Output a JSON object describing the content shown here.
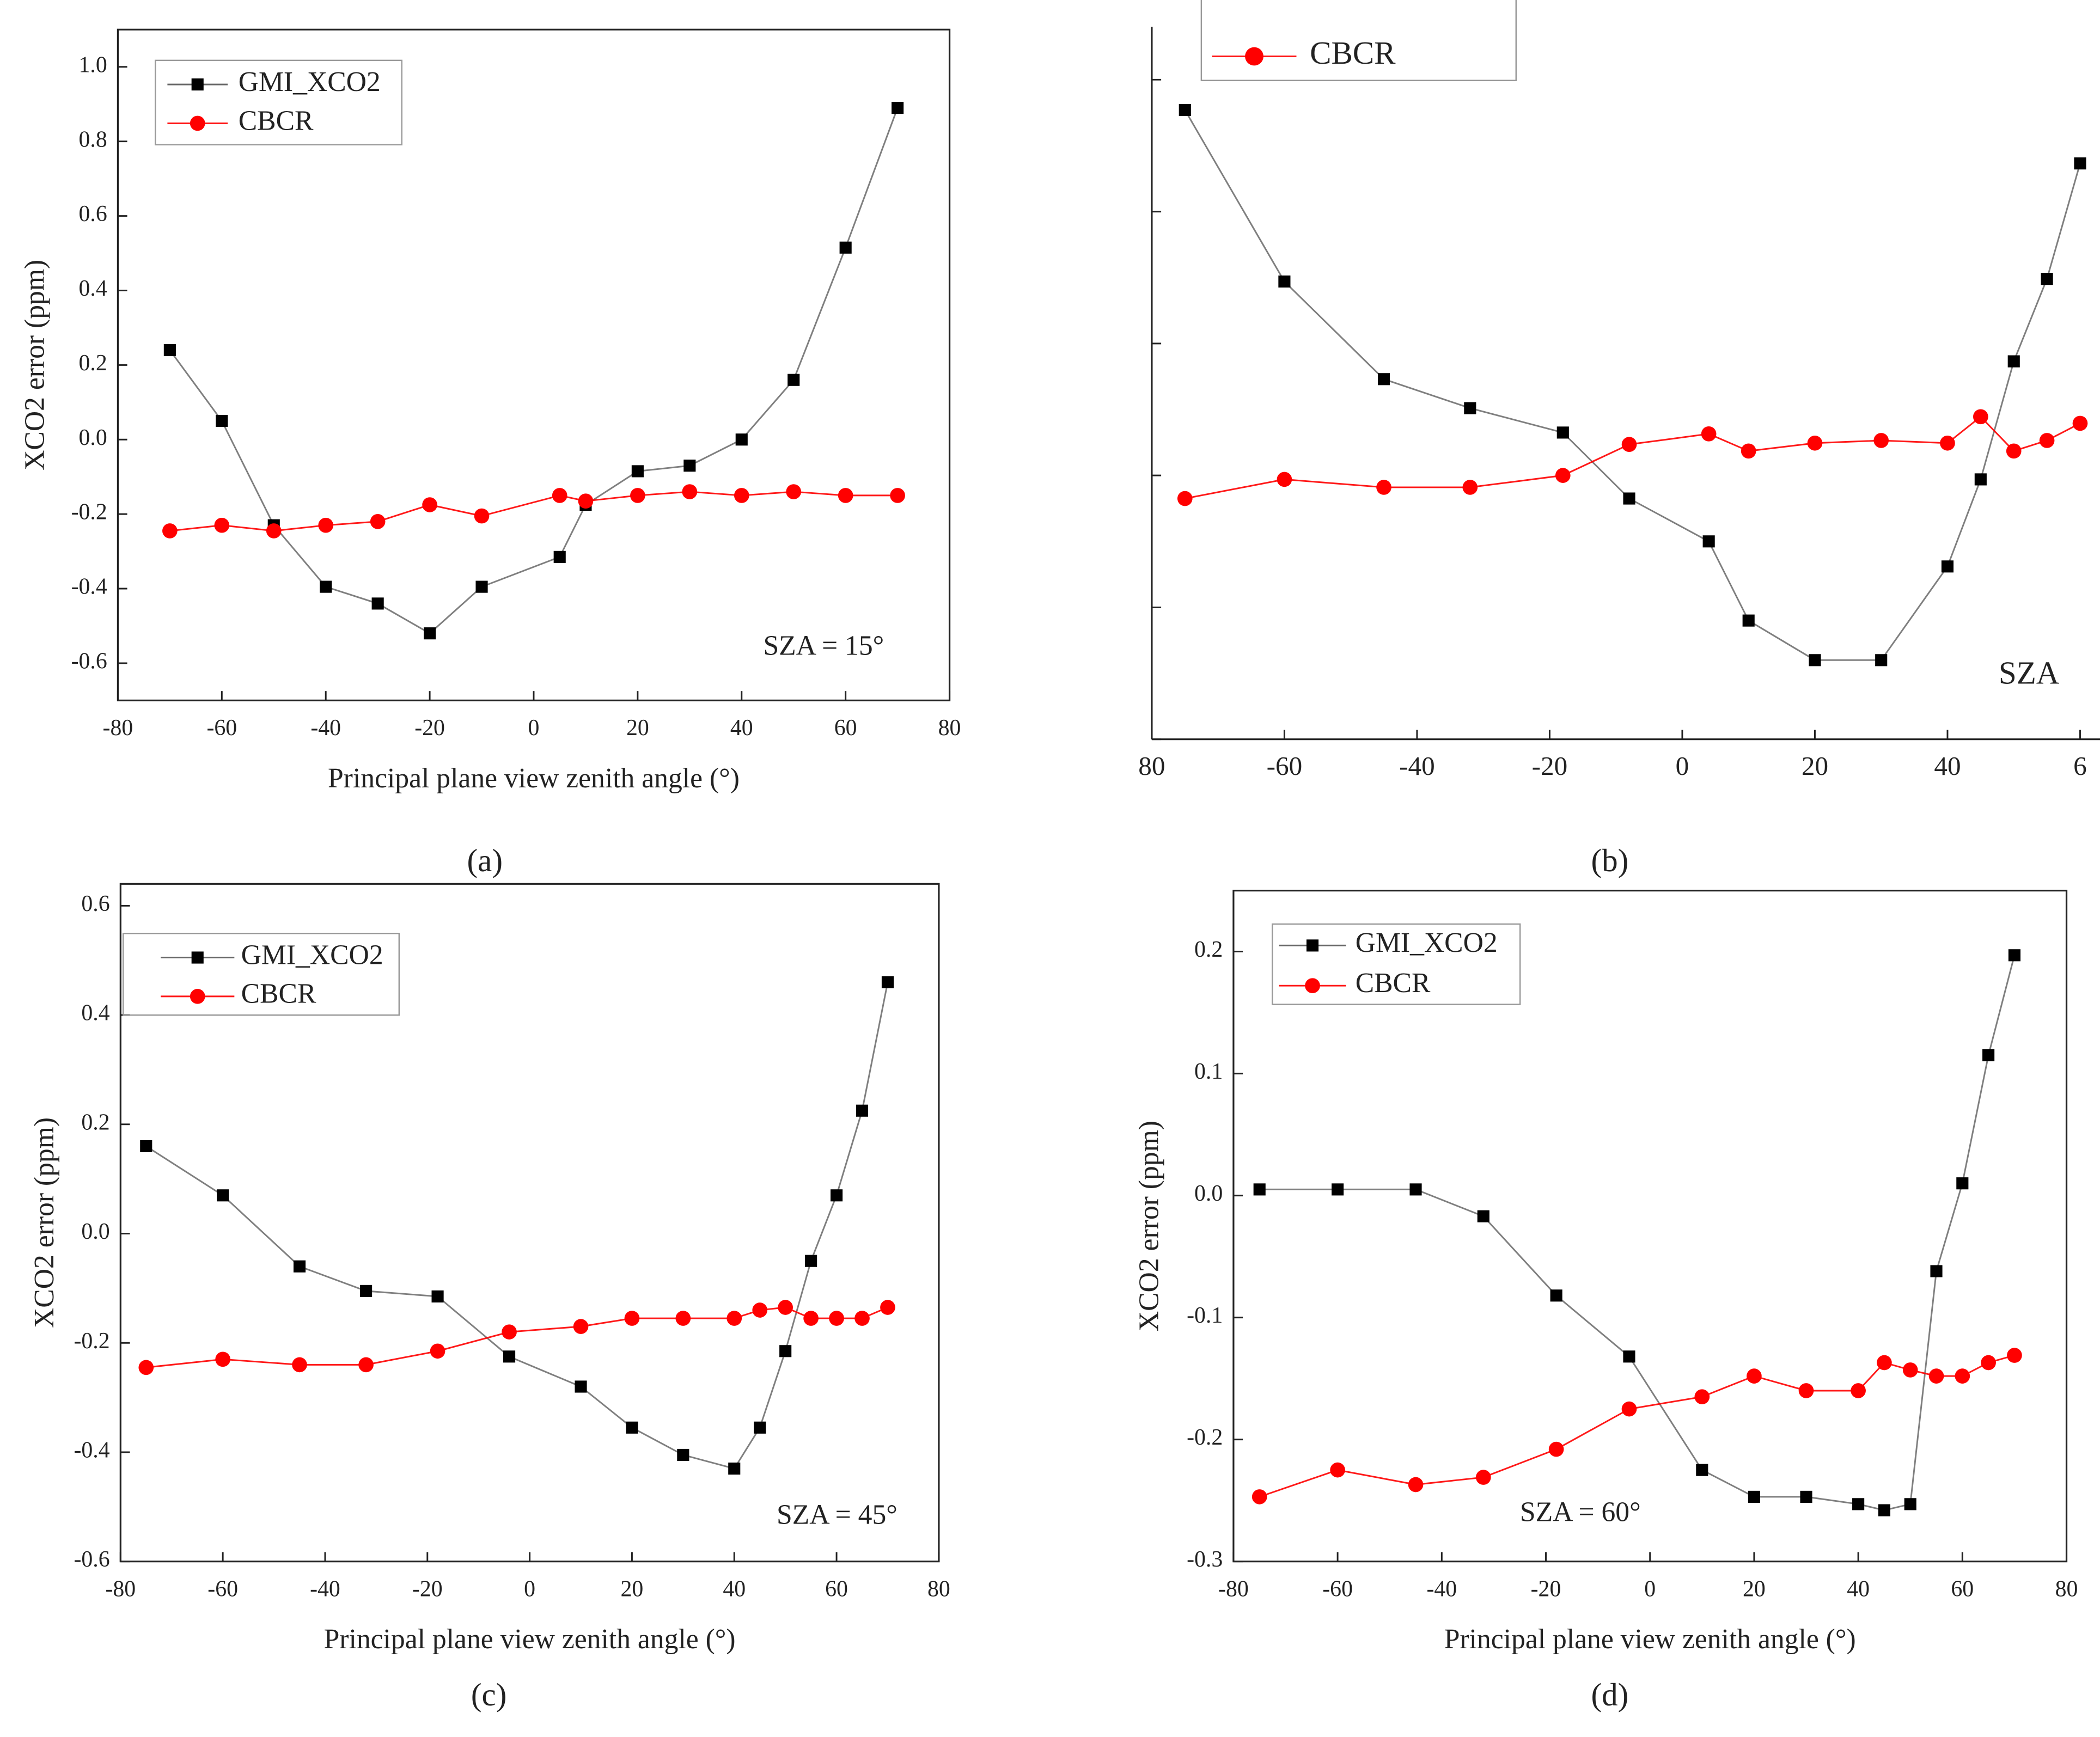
{
  "chart_data": [
    {
      "type": "line",
      "panel_label": "(a)",
      "xlabel": "Principal plane view zenith angle (°)",
      "ylabel": "XCO2 error (ppm)",
      "annotation": "SZA = 15°",
      "x": [
        -70,
        -60,
        -50,
        -40,
        -30,
        -20,
        -10,
        5,
        10,
        20,
        30,
        40,
        50,
        60,
        70
      ],
      "series": [
        {
          "name": "GMI_XCO2",
          "color": "#000000",
          "marker": "square",
          "values": [
            0.24,
            0.05,
            -0.23,
            -0.395,
            -0.44,
            -0.52,
            -0.395,
            -0.315,
            -0.175,
            -0.085,
            -0.07,
            0.0,
            0.16,
            0.515,
            0.89
          ]
        },
        {
          "name": "CBCR",
          "color": "#ff0000",
          "marker": "circle",
          "values": [
            -0.245,
            -0.23,
            -0.245,
            -0.23,
            -0.22,
            -0.175,
            -0.205,
            -0.15,
            -0.165,
            -0.15,
            -0.14,
            -0.15,
            -0.14,
            -0.15,
            -0.15
          ]
        }
      ],
      "xlim": [
        -80,
        80
      ],
      "xticks": [
        -80,
        -60,
        -40,
        -20,
        0,
        20,
        40,
        60,
        80
      ],
      "ylim": [
        -0.7,
        1.1
      ],
      "yticks": [
        -0.6,
        -0.4,
        -0.2,
        {
          "value": 0,
          "label": "0.0"
        },
        0.2,
        0.4,
        0.6,
        0.8,
        {
          "value": 1,
          "label": "1.0"
        }
      ]
    },
    {
      "type": "line",
      "panel_label": "(b)",
      "annotation": "SZA",
      "show_ytick_labels": false,
      "x": [
        -75,
        -60,
        -45,
        -32,
        -18,
        -8,
        4,
        10,
        20,
        30,
        40,
        45,
        50,
        55,
        60
      ],
      "series": [
        {
          "color": "#000000",
          "marker": "square",
          "values": [
            0.354,
            0.094,
            -0.054,
            -0.098,
            -0.135,
            -0.235,
            -0.3,
            -0.42,
            -0.48,
            -0.48,
            -0.338,
            -0.206,
            -0.027,
            0.098,
            0.273
          ]
        },
        {
          "name": "CBCR",
          "color": "#ff0000",
          "marker": "circle",
          "values": [
            -0.235,
            -0.206,
            -0.218,
            -0.218,
            -0.2,
            -0.153,
            -0.137,
            -0.163,
            -0.151,
            -0.147,
            -0.151,
            -0.111,
            -0.163,
            -0.147,
            -0.121
          ]
        }
      ],
      "xlim": [
        -80,
        63
      ],
      "xticks": [
        {
          "value": -80,
          "label": "80"
        },
        -60,
        -40,
        -20,
        0,
        20,
        40,
        {
          "value": 60,
          "label": "6"
        }
      ],
      "ylim": [
        -0.6,
        0.48
      ],
      "yticks": [
        -0.6,
        -0.4,
        -0.2,
        0,
        0.2,
        0.4
      ]
    },
    {
      "type": "line",
      "panel_label": "(c)",
      "xlabel": "Principal plane view zenith angle (°)",
      "ylabel": "XCO2 error (ppm)",
      "annotation": "SZA = 45°",
      "x": [
        -75,
        -60,
        -45,
        -32,
        -18,
        -4,
        10,
        20,
        30,
        40,
        45,
        50,
        55,
        60,
        65,
        70
      ],
      "series": [
        {
          "name": "GMI_XCO2",
          "color": "#000000",
          "marker": "square",
          "values": [
            0.16,
            0.07,
            -0.06,
            -0.105,
            -0.115,
            -0.225,
            -0.28,
            -0.355,
            -0.405,
            -0.43,
            -0.355,
            -0.215,
            -0.05,
            0.07,
            0.225,
            0.46
          ]
        },
        {
          "name": "CBCR",
          "color": "#ff0000",
          "marker": "circle",
          "values": [
            -0.245,
            -0.23,
            -0.24,
            -0.24,
            -0.215,
            -0.18,
            -0.17,
            -0.155,
            -0.155,
            -0.155,
            -0.14,
            -0.135,
            -0.155,
            -0.155,
            -0.155,
            -0.135
          ]
        }
      ],
      "xlim": [
        -80,
        80
      ],
      "xticks": [
        -80,
        -60,
        -40,
        -20,
        0,
        20,
        40,
        60,
        80
      ],
      "ylim": [
        -0.6,
        0.64
      ],
      "yticks": [
        -0.6,
        -0.4,
        -0.2,
        {
          "value": 0,
          "label": "0.0"
        },
        0.2,
        0.4,
        0.6
      ]
    },
    {
      "type": "line",
      "panel_label": "(d)",
      "xlabel": "Principal plane view zenith angle (°)",
      "ylabel": "XCO2 error (ppm)",
      "annotation": "SZA = 60°",
      "x": [
        -75,
        -60,
        -45,
        -32,
        -18,
        -4,
        10,
        20,
        30,
        40,
        45,
        50,
        55,
        60,
        65,
        70
      ],
      "series": [
        {
          "name": "GMI_XCO2",
          "color": "#000000",
          "marker": "square",
          "values": [
            0.005,
            0.005,
            0.005,
            -0.017,
            -0.082,
            -0.132,
            -0.225,
            -0.247,
            -0.247,
            -0.253,
            -0.258,
            -0.253,
            -0.062,
            0.01,
            0.115,
            0.197
          ]
        },
        {
          "name": "CBCR",
          "color": "#ff0000",
          "marker": "circle",
          "values": [
            -0.247,
            -0.225,
            -0.237,
            -0.231,
            -0.208,
            -0.175,
            -0.165,
            -0.148,
            -0.16,
            -0.16,
            -0.137,
            -0.143,
            -0.148,
            -0.148,
            -0.137,
            -0.131
          ]
        }
      ],
      "xlim": [
        -80,
        80
      ],
      "xticks": [
        -80,
        -60,
        -40,
        -20,
        0,
        20,
        40,
        60,
        80
      ],
      "ylim": [
        -0.3,
        0.25
      ],
      "yticks": [
        -0.3,
        -0.2,
        -0.1,
        {
          "value": 0,
          "label": "0.0"
        },
        0.1,
        0.2
      ]
    }
  ]
}
